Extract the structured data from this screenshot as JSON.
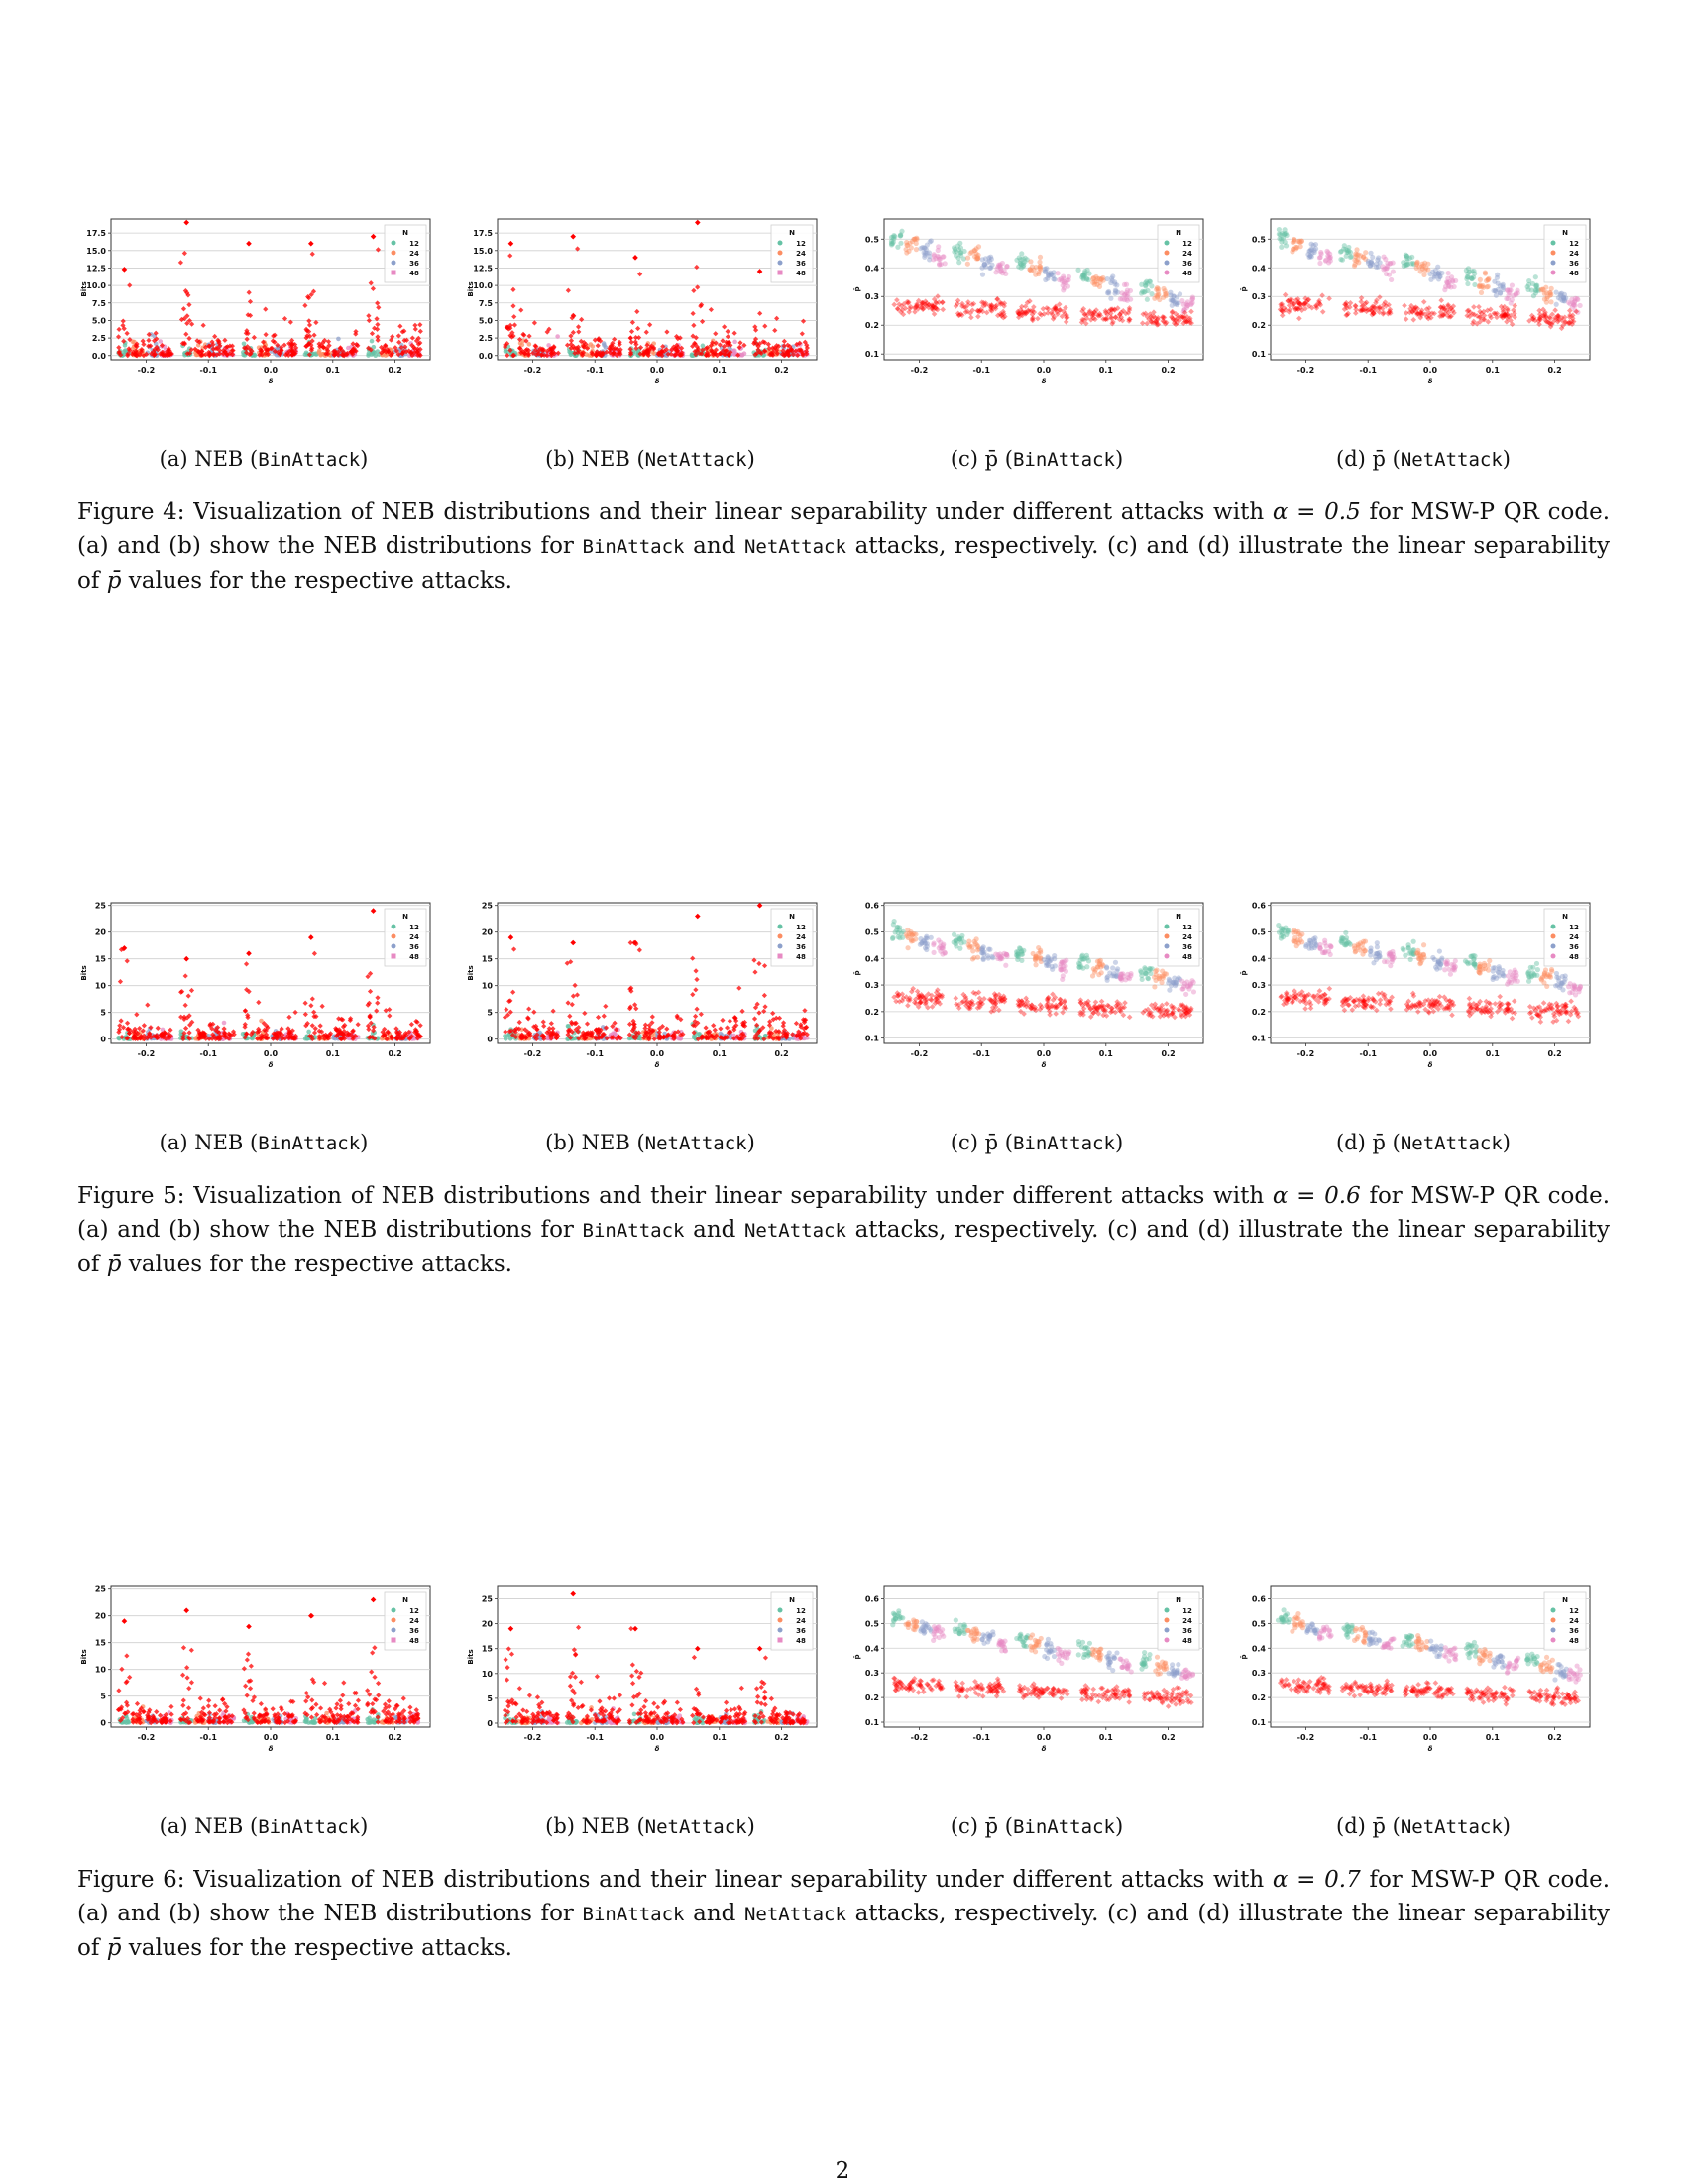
{
  "colors": {
    "n12": "#66c2a5",
    "n24": "#fc8d62",
    "n36": "#8da0cb",
    "n48": "#e78ac3",
    "attack": "#ff0000"
  },
  "legend": {
    "title": "N",
    "entries": [
      "12",
      "24",
      "36",
      "48"
    ]
  },
  "figures": [
    {
      "number": "Figure 4:",
      "alpha": "0.5",
      "caption_pre": "Visualization of NEB distributions and their linear separability under different attacks with",
      "caption_alpha": "α = 0.5",
      "caption_mid1": "for MSW-P QR code. (a) and (b) show the NEB distributions for",
      "attack1": "BinAttack",
      "caption_and": "and",
      "attack2": "NetAttack",
      "caption_mid2": "attacks, respectively. (c) and (d) illustrate the linear separability of",
      "pbar": "p̄",
      "caption_post": "values for the respective attacks.",
      "subcaptions": [
        {
          "label": "(a) NEB (",
          "mono": "BinAttack",
          "end": ")"
        },
        {
          "label": "(b) NEB (",
          "mono": "NetAttack",
          "end": ")"
        },
        {
          "label": "(c) p̄ (",
          "mono": "BinAttack",
          "end": ")"
        },
        {
          "label": "(d) p̄ (",
          "mono": "NetAttack",
          "end": ")"
        }
      ]
    },
    {
      "number": "Figure 5:",
      "alpha": "0.6",
      "caption_pre": "Visualization of NEB distributions and their linear separability under different attacks with",
      "caption_alpha": "α = 0.6",
      "caption_mid1": "for MSW-P QR code. (a) and (b) show the NEB distributions for",
      "attack1": "BinAttack",
      "caption_and": "and",
      "attack2": "NetAttack",
      "caption_mid2": "attacks, respectively. (c) and (d) illustrate the linear separability of",
      "pbar": "p̄",
      "caption_post": "values for the respective attacks.",
      "subcaptions": [
        {
          "label": "(a) NEB (",
          "mono": "BinAttack",
          "end": ")"
        },
        {
          "label": "(b) NEB (",
          "mono": "NetAttack",
          "end": ")"
        },
        {
          "label": "(c) p̄ (",
          "mono": "BinAttack",
          "end": ")"
        },
        {
          "label": "(d) p̄ (",
          "mono": "NetAttack",
          "end": ")"
        }
      ]
    },
    {
      "number": "Figure 6:",
      "alpha": "0.7",
      "caption_pre": "Visualization of NEB distributions and their linear separability under different attacks with",
      "caption_alpha": "α = 0.7",
      "caption_mid1": "for MSW-P QR code. (a) and (b) show the NEB distributions for",
      "attack1": "BinAttack",
      "caption_and": "and",
      "attack2": "NetAttack",
      "caption_mid2": "attacks, respectively. (c) and (d) illustrate the linear separability of",
      "pbar": "p̄",
      "caption_post": "values for the respective attacks.",
      "subcaptions": [
        {
          "label": "(a) NEB (",
          "mono": "BinAttack",
          "end": ")"
        },
        {
          "label": "(b) NEB (",
          "mono": "NetAttack",
          "end": ")"
        },
        {
          "label": "(c) p̄ (",
          "mono": "BinAttack",
          "end": ")"
        },
        {
          "label": "(d) p̄ (",
          "mono": "NetAttack",
          "end": ")"
        }
      ]
    }
  ],
  "page_number": "2",
  "chart_data": [
    {
      "id": "fig4a",
      "type": "scatter",
      "xlabel": "δ",
      "ylabel": "Bits",
      "x_ticks": [
        "-0.2",
        "-0.1",
        "0.0",
        "0.1",
        "0.2"
      ],
      "y_ticks": [
        "0.0",
        "2.5",
        "5.0",
        "7.5",
        "10.0",
        "12.5",
        "15.0",
        "17.5"
      ],
      "ylim": [
        -0.6,
        19.5
      ],
      "grid": true,
      "legend": "top-right",
      "series": [
        {
          "name": "12"
        },
        {
          "name": "24"
        },
        {
          "name": "36"
        },
        {
          "name": "48"
        }
      ],
      "attack_max": [
        12.3,
        19.0,
        16.0,
        16.0,
        17.0
      ],
      "kind": "neb"
    },
    {
      "id": "fig4b",
      "type": "scatter",
      "xlabel": "δ",
      "ylabel": "Bits",
      "x_ticks": [
        "-0.2",
        "-0.1",
        "0.0",
        "0.1",
        "0.2"
      ],
      "y_ticks": [
        "0.0",
        "2.5",
        "5.0",
        "7.5",
        "10.0",
        "12.5",
        "15.0",
        "17.5"
      ],
      "ylim": [
        -0.6,
        19.5
      ],
      "grid": true,
      "legend": "top-right",
      "series": [
        {
          "name": "12"
        },
        {
          "name": "24"
        },
        {
          "name": "36"
        },
        {
          "name": "48"
        }
      ],
      "attack_max": [
        16.0,
        17.0,
        14.0,
        19.0,
        12.0
      ],
      "kind": "neb"
    },
    {
      "id": "fig4c",
      "type": "scatter",
      "xlabel": "δ",
      "ylabel": "p̄",
      "x_ticks": [
        "-0.2",
        "-0.1",
        "0.0",
        "0.1",
        "0.2"
      ],
      "y_ticks": [
        "0.1",
        "0.2",
        "0.3",
        "0.4",
        "0.5"
      ],
      "ylim": [
        0.08,
        0.57
      ],
      "grid": true,
      "legend": "top-right",
      "series": [
        {
          "name": "12"
        },
        {
          "name": "24"
        },
        {
          "name": "36"
        },
        {
          "name": "48"
        }
      ],
      "benign_start": 0.5,
      "benign_end": 0.33,
      "attack_mean": 0.24,
      "kind": "pbar"
    },
    {
      "id": "fig4d",
      "type": "scatter",
      "xlabel": "δ",
      "ylabel": "p̄",
      "x_ticks": [
        "-0.2",
        "-0.1",
        "0.0",
        "0.1",
        "0.2"
      ],
      "y_ticks": [
        "0.1",
        "0.2",
        "0.3",
        "0.4",
        "0.5"
      ],
      "ylim": [
        0.08,
        0.57
      ],
      "grid": true,
      "legend": "top-right",
      "series": [
        {
          "name": "12"
        },
        {
          "name": "24"
        },
        {
          "name": "36"
        },
        {
          "name": "48"
        }
      ],
      "benign_start": 0.5,
      "benign_end": 0.33,
      "attack_mean": 0.24,
      "kind": "pbar"
    },
    {
      "id": "fig5a",
      "type": "scatter",
      "xlabel": "δ",
      "ylabel": "Bits",
      "x_ticks": [
        "-0.2",
        "-0.1",
        "0.0",
        "0.1",
        "0.2"
      ],
      "y_ticks": [
        "0",
        "5",
        "10",
        "15",
        "20",
        "25"
      ],
      "ylim": [
        -0.8,
        25.5
      ],
      "grid": true,
      "legend": "top-right",
      "series": [
        {
          "name": "12"
        },
        {
          "name": "24"
        },
        {
          "name": "36"
        },
        {
          "name": "48"
        }
      ],
      "attack_max": [
        17.0,
        15.0,
        16.0,
        19.0,
        24.0
      ],
      "kind": "neb"
    },
    {
      "id": "fig5b",
      "type": "scatter",
      "xlabel": "δ",
      "ylabel": "Bits",
      "x_ticks": [
        "-0.2",
        "-0.1",
        "0.0",
        "0.1",
        "0.2"
      ],
      "y_ticks": [
        "0",
        "5",
        "10",
        "15",
        "20",
        "25"
      ],
      "ylim": [
        -0.8,
        25.5
      ],
      "grid": true,
      "legend": "top-right",
      "series": [
        {
          "name": "12"
        },
        {
          "name": "24"
        },
        {
          "name": "36"
        },
        {
          "name": "48"
        }
      ],
      "attack_max": [
        19.0,
        18.0,
        18.0,
        23.0,
        25.0
      ],
      "kind": "neb"
    },
    {
      "id": "fig5c",
      "type": "scatter",
      "xlabel": "δ",
      "ylabel": "p̄",
      "x_ticks": [
        "-0.2",
        "-0.1",
        "0.0",
        "0.1",
        "0.2"
      ],
      "y_ticks": [
        "0.1",
        "0.2",
        "0.3",
        "0.4",
        "0.5",
        "0.6"
      ],
      "ylim": [
        0.08,
        0.61
      ],
      "grid": true,
      "legend": "top-right",
      "series": [
        {
          "name": "12"
        },
        {
          "name": "24"
        },
        {
          "name": "36"
        },
        {
          "name": "48"
        }
      ],
      "benign_start": 0.5,
      "benign_end": 0.35,
      "attack_mean": 0.22,
      "kind": "pbar"
    },
    {
      "id": "fig5d",
      "type": "scatter",
      "xlabel": "δ",
      "ylabel": "p̄",
      "x_ticks": [
        "-0.2",
        "-0.1",
        "0.0",
        "0.1",
        "0.2"
      ],
      "y_ticks": [
        "0.1",
        "0.2",
        "0.3",
        "0.4",
        "0.5",
        "0.6"
      ],
      "ylim": [
        0.08,
        0.61
      ],
      "grid": true,
      "legend": "top-right",
      "series": [
        {
          "name": "12"
        },
        {
          "name": "24"
        },
        {
          "name": "36"
        },
        {
          "name": "48"
        }
      ],
      "benign_start": 0.5,
      "benign_end": 0.35,
      "attack_mean": 0.22,
      "kind": "pbar"
    },
    {
      "id": "fig6a",
      "type": "scatter",
      "xlabel": "δ",
      "ylabel": "Bits",
      "x_ticks": [
        "-0.2",
        "-0.1",
        "0.0",
        "0.1",
        "0.2"
      ],
      "y_ticks": [
        "0",
        "5",
        "10",
        "15",
        "20",
        "25"
      ],
      "ylim": [
        -0.8,
        25.5
      ],
      "grid": true,
      "legend": "top-right",
      "series": [
        {
          "name": "12"
        },
        {
          "name": "24"
        },
        {
          "name": "36"
        },
        {
          "name": "48"
        }
      ],
      "attack_max": [
        19.0,
        21.0,
        18.0,
        20.0,
        23.0
      ],
      "kind": "neb"
    },
    {
      "id": "fig6b",
      "type": "scatter",
      "xlabel": "δ",
      "ylabel": "Bits",
      "x_ticks": [
        "-0.2",
        "-0.1",
        "0.0",
        "0.1",
        "0.2"
      ],
      "y_ticks": [
        "0",
        "5",
        "10",
        "15",
        "20",
        "25"
      ],
      "ylim": [
        -0.8,
        27.5
      ],
      "grid": true,
      "legend": "top-right",
      "series": [
        {
          "name": "12"
        },
        {
          "name": "24"
        },
        {
          "name": "36"
        },
        {
          "name": "48"
        }
      ],
      "attack_max": [
        19.0,
        26.0,
        19.0,
        15.0,
        15.0
      ],
      "kind": "neb"
    },
    {
      "id": "fig6c",
      "type": "scatter",
      "xlabel": "δ",
      "ylabel": "p̄",
      "x_ticks": [
        "-0.2",
        "-0.1",
        "0.0",
        "0.1",
        "0.2"
      ],
      "y_ticks": [
        "0.1",
        "0.2",
        "0.3",
        "0.4",
        "0.5",
        "0.6"
      ],
      "ylim": [
        0.08,
        0.65
      ],
      "grid": true,
      "legend": "top-right",
      "series": [
        {
          "name": "12"
        },
        {
          "name": "24"
        },
        {
          "name": "36"
        },
        {
          "name": "48"
        }
      ],
      "benign_start": 0.52,
      "benign_end": 0.35,
      "attack_mean": 0.22,
      "kind": "pbar"
    },
    {
      "id": "fig6d",
      "type": "scatter",
      "xlabel": "δ",
      "ylabel": "p̄",
      "x_ticks": [
        "-0.2",
        "-0.1",
        "0.0",
        "0.1",
        "0.2"
      ],
      "y_ticks": [
        "0.1",
        "0.2",
        "0.3",
        "0.4",
        "0.5",
        "0.6"
      ],
      "ylim": [
        0.08,
        0.65
      ],
      "grid": true,
      "legend": "top-right",
      "series": [
        {
          "name": "12"
        },
        {
          "name": "24"
        },
        {
          "name": "36"
        },
        {
          "name": "48"
        }
      ],
      "benign_start": 0.52,
      "benign_end": 0.35,
      "attack_mean": 0.22,
      "kind": "pbar"
    }
  ]
}
